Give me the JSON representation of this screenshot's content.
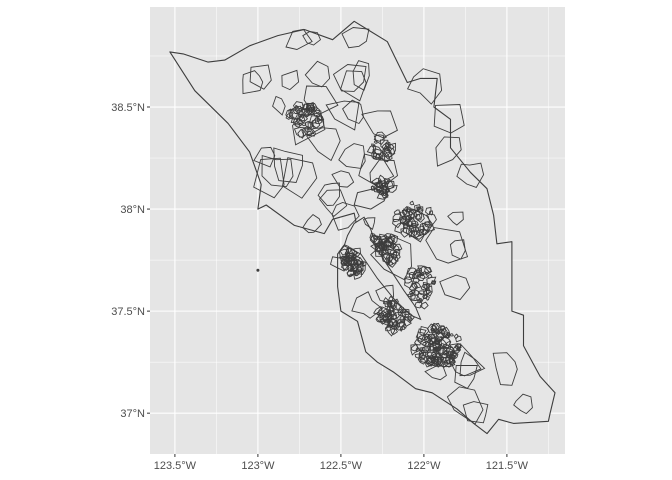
{
  "figure": {
    "panel_background": "#e5e5e5",
    "grid_color": "#ffffff",
    "polygon_fill": "#e6e6e6",
    "polygon_stroke": "#3d3d3d",
    "tick_color": "#333333",
    "label_color": "#4d4d4d"
  },
  "axes": {
    "x": {
      "range": [
        -123.65,
        -121.15
      ],
      "ticks": [
        {
          "value": -123.5,
          "label": "123.5°W"
        },
        {
          "value": -123.0,
          "label": "123°W"
        },
        {
          "value": -122.5,
          "label": "122.5°W"
        },
        {
          "value": -122.0,
          "label": "122°W"
        },
        {
          "value": -121.5,
          "label": "121.5°W"
        }
      ]
    },
    "y": {
      "range": [
        36.8,
        38.99
      ],
      "ticks": [
        {
          "value": 38.5,
          "label": "38.5°N"
        },
        {
          "value": 38.0,
          "label": "38°N"
        },
        {
          "value": 37.5,
          "label": "37.5°N"
        },
        {
          "value": 37.0,
          "label": "37°N"
        }
      ]
    }
  },
  "map": {
    "outline": [
      [
        -123.53,
        38.77
      ],
      [
        -123.45,
        38.76
      ],
      [
        -123.3,
        38.72
      ],
      [
        -123.2,
        38.73
      ],
      [
        -123.05,
        38.8
      ],
      [
        -122.88,
        38.85
      ],
      [
        -122.72,
        38.88
      ],
      [
        -122.55,
        38.83
      ],
      [
        -122.42,
        38.92
      ],
      [
        -122.34,
        38.88
      ],
      [
        -122.22,
        38.82
      ],
      [
        -122.1,
        38.62
      ],
      [
        -122.02,
        38.64
      ],
      [
        -121.92,
        38.64
      ],
      [
        -121.94,
        38.5
      ],
      [
        -121.84,
        38.44
      ],
      [
        -121.84,
        38.3
      ],
      [
        -121.72,
        38.18
      ],
      [
        -121.62,
        38.1
      ],
      [
        -121.58,
        37.97
      ],
      [
        -121.56,
        37.83
      ],
      [
        -121.47,
        37.84
      ],
      [
        -121.47,
        37.5
      ],
      [
        -121.4,
        37.48
      ],
      [
        -121.4,
        37.33
      ],
      [
        -121.3,
        37.18
      ],
      [
        -121.21,
        37.1
      ],
      [
        -121.24,
        37.0
      ],
      [
        -121.25,
        36.96
      ],
      [
        -121.46,
        36.95
      ],
      [
        -121.55,
        36.97
      ],
      [
        -121.62,
        36.9
      ],
      [
        -121.7,
        36.95
      ],
      [
        -121.8,
        37.02
      ],
      [
        -121.95,
        37.1
      ],
      [
        -122.05,
        37.12
      ],
      [
        -122.18,
        37.2
      ],
      [
        -122.28,
        37.25
      ],
      [
        -122.35,
        37.3
      ],
      [
        -122.4,
        37.45
      ],
      [
        -122.5,
        37.5
      ],
      [
        -122.52,
        37.62
      ],
      [
        -122.52,
        37.78
      ],
      [
        -122.45,
        37.85
      ],
      [
        -122.4,
        37.9
      ],
      [
        -122.42,
        37.98
      ],
      [
        -122.55,
        37.95
      ],
      [
        -122.6,
        37.88
      ],
      [
        -122.78,
        37.92
      ],
      [
        -122.95,
        38.02
      ],
      [
        -123.0,
        38.0
      ],
      [
        -122.98,
        38.12
      ],
      [
        -123.05,
        38.28
      ],
      [
        -123.18,
        38.42
      ],
      [
        -123.38,
        38.58
      ],
      [
        -123.53,
        38.77
      ]
    ],
    "bay": [
      [
        -122.48,
        37.82
      ],
      [
        -122.38,
        37.78
      ],
      [
        -122.28,
        37.66
      ],
      [
        -122.18,
        37.56
      ],
      [
        -122.08,
        37.48
      ],
      [
        -122.02,
        37.46
      ],
      [
        -122.05,
        37.52
      ],
      [
        -122.12,
        37.6
      ],
      [
        -122.2,
        37.7
      ],
      [
        -122.28,
        37.8
      ],
      [
        -122.32,
        37.9
      ],
      [
        -122.36,
        37.96
      ],
      [
        -122.42,
        37.93
      ],
      [
        -122.46,
        37.87
      ],
      [
        -122.48,
        37.82
      ]
    ],
    "san_pablo_bay": [
      [
        -122.42,
        38.02
      ],
      [
        -122.32,
        38.0
      ],
      [
        -122.24,
        38.04
      ],
      [
        -122.22,
        38.08
      ],
      [
        -122.3,
        38.1
      ],
      [
        -122.4,
        38.08
      ],
      [
        -122.42,
        38.02
      ]
    ],
    "farallon": [
      -123.0,
      37.7
    ],
    "tract_seed": 20231,
    "dense_clusters": [
      {
        "lon": -122.42,
        "lat": 37.75,
        "rx": 0.07,
        "ry": 0.08,
        "n": 60
      },
      {
        "lon": -122.25,
        "lat": 37.8,
        "rx": 0.1,
        "ry": 0.08,
        "n": 70
      },
      {
        "lon": -121.92,
        "lat": 37.33,
        "rx": 0.14,
        "ry": 0.1,
        "n": 110
      },
      {
        "lon": -122.18,
        "lat": 37.48,
        "rx": 0.1,
        "ry": 0.08,
        "n": 60
      },
      {
        "lon": -122.02,
        "lat": 37.62,
        "rx": 0.08,
        "ry": 0.1,
        "n": 45
      },
      {
        "lon": -122.72,
        "lat": 38.44,
        "rx": 0.1,
        "ry": 0.08,
        "n": 45
      },
      {
        "lon": -122.25,
        "lat": 38.3,
        "rx": 0.06,
        "ry": 0.06,
        "n": 20
      },
      {
        "lon": -122.05,
        "lat": 37.95,
        "rx": 0.12,
        "ry": 0.08,
        "n": 50
      },
      {
        "lon": -122.25,
        "lat": 38.1,
        "rx": 0.06,
        "ry": 0.05,
        "n": 25
      }
    ]
  }
}
